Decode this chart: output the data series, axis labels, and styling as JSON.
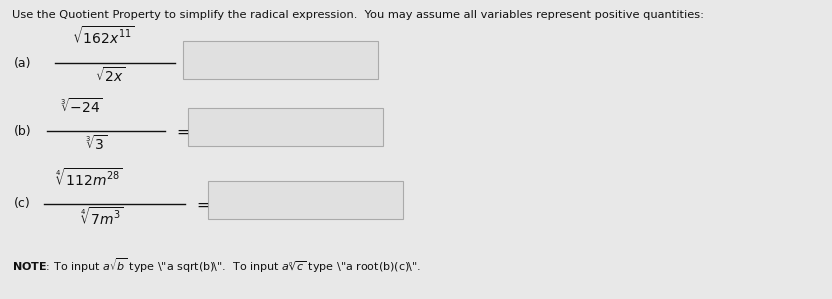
{
  "title_text": "Use the Quotient Property to simplify the radical expression.  You may assume all variables represent positive quantities:",
  "bg_color": "#e8e8e8",
  "box_facecolor": "#e0e0e0",
  "box_edgecolor": "#aaaaaa",
  "text_color": "#111111",
  "figsize": [
    8.32,
    2.99
  ],
  "dpi": 100,
  "note_bold": "NOTE:",
  "note_rest": " To input a√b type \"a sqrt(b)\".  To input a∞c type \"a root(b)(c)\"."
}
